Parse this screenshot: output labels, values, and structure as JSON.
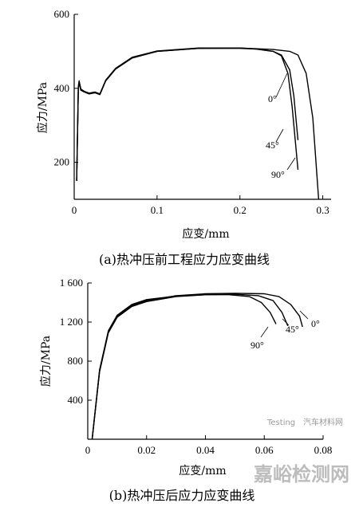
{
  "chart_data": [
    {
      "type": "line",
      "xlabel": "应变/mm",
      "ylabel": "应力/MPa",
      "xlim": [
        0,
        0.31
      ],
      "ylim": [
        100,
        600
      ],
      "x_ticks": [
        "0",
        "0.1",
        "0.2",
        "0.3"
      ],
      "x_tick_values": [
        0,
        0.1,
        0.2,
        0.3
      ],
      "y_ticks": [
        "200",
        "400",
        "600"
      ],
      "y_tick_values": [
        200,
        400,
        600
      ],
      "caption": "(a)热冲压前工程应力应变曲线",
      "grid": false,
      "series": [
        {
          "name": "0°",
          "x": [
            0.003,
            0.005,
            0.006,
            0.008,
            0.012,
            0.018,
            0.025,
            0.031,
            0.038,
            0.05,
            0.07,
            0.1,
            0.15,
            0.2,
            0.22,
            0.24,
            0.25,
            0.26,
            0.265,
            0.27
          ],
          "y": [
            150,
            400,
            415,
            395,
            390,
            385,
            388,
            383,
            420,
            452,
            482,
            500,
            508,
            508,
            506,
            500,
            490,
            450,
            380,
            260
          ]
        },
        {
          "name": "45°",
          "x": [
            0.003,
            0.005,
            0.006,
            0.008,
            0.012,
            0.018,
            0.025,
            0.031,
            0.038,
            0.05,
            0.07,
            0.1,
            0.15,
            0.2,
            0.22,
            0.24,
            0.25,
            0.258,
            0.263,
            0.27
          ],
          "y": [
            150,
            405,
            420,
            398,
            392,
            387,
            390,
            385,
            422,
            454,
            484,
            501,
            509,
            509,
            506,
            500,
            488,
            440,
            350,
            180
          ]
        },
        {
          "name": "90°",
          "x": [
            0.003,
            0.005,
            0.006,
            0.008,
            0.012,
            0.018,
            0.025,
            0.031,
            0.038,
            0.05,
            0.07,
            0.1,
            0.15,
            0.2,
            0.24,
            0.26,
            0.27,
            0.28,
            0.288,
            0.295
          ],
          "y": [
            150,
            402,
            418,
            396,
            391,
            386,
            389,
            384,
            421,
            453,
            483,
            500,
            508,
            509,
            505,
            500,
            490,
            440,
            320,
            100
          ]
        }
      ],
      "annotations": [
        "0°",
        "45°",
        "90°"
      ]
    },
    {
      "type": "line",
      "xlabel": "应变/mm",
      "ylabel": "应力/MPa",
      "xlim": [
        0,
        0.08
      ],
      "ylim": [
        0,
        1600
      ],
      "x_ticks": [
        "0",
        "0.02",
        "0.04",
        "0.06",
        "0.08"
      ],
      "x_tick_values": [
        0,
        0.02,
        0.04,
        0.06,
        0.08
      ],
      "y_ticks": [
        "400",
        "800",
        "1 200",
        "1 600"
      ],
      "y_tick_values": [
        400,
        800,
        1200,
        1600
      ],
      "caption": "(b)热冲压后应力应变曲线",
      "grid": false,
      "series": [
        {
          "name": "0°",
          "x": [
            0.0015,
            0.004,
            0.007,
            0.01,
            0.015,
            0.02,
            0.03,
            0.04,
            0.05,
            0.06,
            0.065,
            0.069,
            0.072,
            0.073
          ],
          "y": [
            0,
            700,
            1100,
            1260,
            1370,
            1420,
            1470,
            1490,
            1495,
            1490,
            1460,
            1380,
            1260,
            1150
          ]
        },
        {
          "name": "45°",
          "x": [
            0.0015,
            0.004,
            0.007,
            0.01,
            0.015,
            0.02,
            0.03,
            0.04,
            0.05,
            0.058,
            0.063,
            0.066,
            0.068
          ],
          "y": [
            0,
            690,
            1090,
            1250,
            1360,
            1410,
            1460,
            1480,
            1485,
            1470,
            1420,
            1300,
            1160
          ]
        },
        {
          "name": "90°",
          "x": [
            0.0015,
            0.004,
            0.007,
            0.01,
            0.015,
            0.02,
            0.03,
            0.04,
            0.048,
            0.055,
            0.059,
            0.062,
            0.064
          ],
          "y": [
            0,
            710,
            1110,
            1270,
            1380,
            1430,
            1465,
            1480,
            1480,
            1460,
            1400,
            1300,
            1180
          ]
        }
      ],
      "annotations": [
        "0°",
        "45°",
        "90°"
      ]
    }
  ],
  "watermark": {
    "main": "嘉峪检测网",
    "sub": "汽车材料网",
    "sub_prefix": "Testing"
  }
}
